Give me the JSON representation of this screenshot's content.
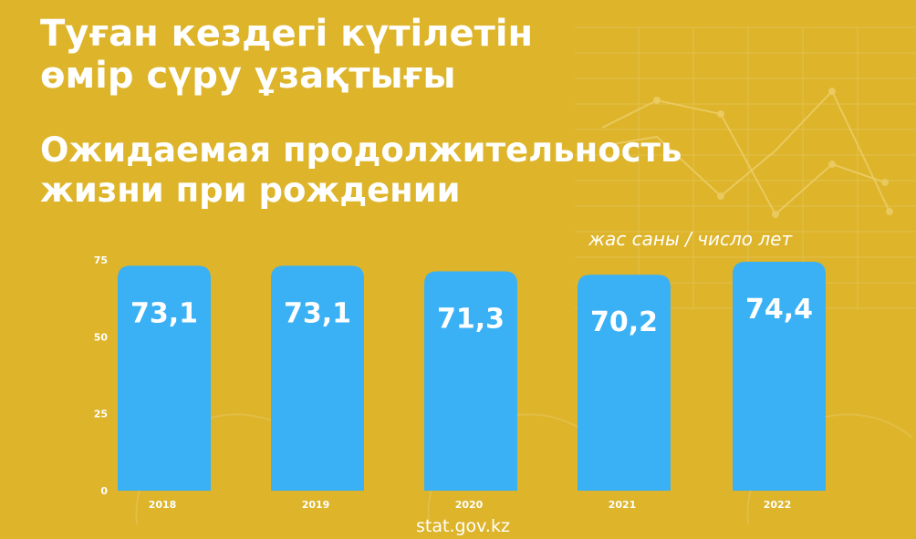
{
  "title_kz": "Туған кездегі күтілетін\nөмір сүру ұзақтығы",
  "title_ru": "Ожидаемая продолжительность\nжизни при рождении",
  "unit_label": "жас саны / число лет",
  "source": "stat.gov.kz",
  "colors": {
    "background": "#DDB42A",
    "bar": "#3AB0F5",
    "text": "#ffffff",
    "axis_text": "#ffffff"
  },
  "chart_data": {
    "type": "bar",
    "categories": [
      "2018",
      "2019",
      "2020",
      "2021",
      "2022"
    ],
    "values": [
      73.1,
      73.1,
      71.3,
      70.2,
      74.4
    ],
    "value_labels": [
      "73,1",
      "73,1",
      "71,3",
      "70,2",
      "74,4"
    ],
    "yticks": [
      0,
      25,
      50,
      75
    ],
    "ylim": [
      0,
      75
    ],
    "grid": false,
    "legend": "none"
  }
}
